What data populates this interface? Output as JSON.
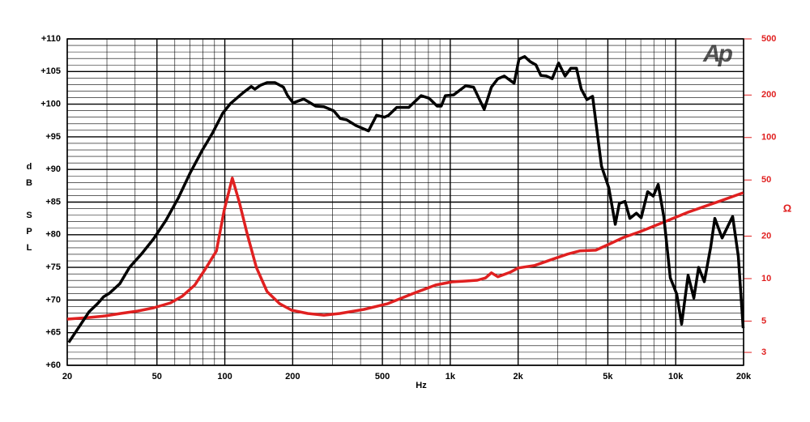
{
  "chart_data": {
    "type": "line",
    "x_label": "Hz",
    "y_label": "dB SPL",
    "y2_label": "Ω",
    "logo": "Ap",
    "xscale": "log",
    "y2scale": "log",
    "xlim": [
      20,
      20000
    ],
    "ylim": [
      60,
      110
    ],
    "y2lim": [
      2.43,
      500
    ],
    "xticks": [
      20,
      50,
      100,
      200,
      500,
      {
        "value": 1000,
        "label": "1k"
      },
      {
        "value": 2000,
        "label": "2k"
      },
      {
        "value": 5000,
        "label": "5k"
      },
      {
        "value": 10000,
        "label": "10k"
      },
      {
        "value": 20000,
        "label": "20k"
      }
    ],
    "yticks": [
      {
        "value": 60,
        "label": "+60"
      },
      {
        "value": 65,
        "label": "+65"
      },
      {
        "value": 70,
        "label": "+70"
      },
      {
        "value": 75,
        "label": "+75"
      },
      {
        "value": 80,
        "label": "+80"
      },
      {
        "value": 85,
        "label": "+85"
      },
      {
        "value": 90,
        "label": "+90"
      },
      {
        "value": 95,
        "label": "+95"
      },
      {
        "value": 100,
        "label": "+100"
      },
      {
        "value": 105,
        "label": "+105"
      },
      {
        "value": 110,
        "label": "+110"
      }
    ],
    "y2ticks": [
      3,
      5,
      10,
      20,
      50,
      100,
      200,
      500
    ],
    "x_minor_grid": [
      30,
      40,
      60,
      70,
      80,
      90,
      300,
      400,
      600,
      700,
      800,
      900,
      3000,
      4000,
      6000,
      7000,
      8000,
      9000
    ],
    "y_minor_grid": [
      61,
      62,
      63,
      64,
      66,
      67,
      68,
      69,
      71,
      72,
      73,
      74,
      76,
      77,
      78,
      79,
      81,
      82,
      83,
      84,
      86,
      87,
      88,
      89,
      91,
      92,
      93,
      94,
      96,
      97,
      98,
      99,
      101,
      102,
      103,
      104,
      106,
      107,
      108,
      109
    ],
    "grid": true,
    "series": [
      {
        "color": "#000000",
        "x": [
          20.3,
          22,
          25,
          27.2,
          29,
          30.7,
          34.2,
          37.8,
          42.8,
          48.4,
          54.8,
          62.1,
          70.3,
          79.6,
          87.9,
          97.8,
          106,
          120,
          131,
          136,
          144,
          154,
          167,
          182,
          190,
          201,
          224,
          253,
          275,
          304,
          325,
          347,
          383,
          434,
          471,
          511,
          533,
          579,
          655,
          742,
          805,
          875,
          912,
          951,
          1033,
          1169,
          1269,
          1414,
          1522,
          1626,
          1737,
          1919,
          2017,
          2137,
          2264,
          2399,
          2521,
          2672,
          2831,
          3024,
          3231,
          3424,
          3628,
          3812,
          4039,
          4280,
          4686,
          5048,
          5395,
          5623,
          5957,
          6259,
          6687,
          7028,
          7507,
          7954,
          8360,
          8859,
          9462,
          10110,
          10620,
          11350,
          12030,
          12640,
          13390,
          14300,
          14910,
          16060,
          17890,
          18950,
          19920
        ],
        "values": [
          63.5,
          65.3,
          68.2,
          69.4,
          70.5,
          71.0,
          72.5,
          75.0,
          77.1,
          79.4,
          82.2,
          85.6,
          89.5,
          93.0,
          95.5,
          98.6,
          100.1,
          101.7,
          102.7,
          102.3,
          102.9,
          103.3,
          103.3,
          102.6,
          101.3,
          100.2,
          100.8,
          99.7,
          99.6,
          99.0,
          97.8,
          97.6,
          96.7,
          95.9,
          98.3,
          98.0,
          98.3,
          99.5,
          99.5,
          101.3,
          100.9,
          99.7,
          99.7,
          101.3,
          101.4,
          102.8,
          102.6,
          99.2,
          102.6,
          103.9,
          104.3,
          103.2,
          106.9,
          107.3,
          106.5,
          106.0,
          104.4,
          104.3,
          103.9,
          106.3,
          104.3,
          105.5,
          105.5,
          102.3,
          100.7,
          101.2,
          90.5,
          87.2,
          81.6,
          84.8,
          85.1,
          82.5,
          83.3,
          82.6,
          86.6,
          85.9,
          87.7,
          82.7,
          73.4,
          70.9,
          66.3,
          73.8,
          70.3,
          75.0,
          72.8,
          78.1,
          82.5,
          79.5,
          82.8,
          76.7,
          65.7
        ]
      },
      {
        "color": "#e02020",
        "axis": "y2",
        "x": [
          20,
          25,
          29.5,
          34.5,
          41.1,
          48.4,
          57.4,
          64.6,
          73.6,
          82.8,
          91.8,
          99.3,
          108,
          116,
          126,
          138,
          154,
          175,
          198,
          233,
          275,
          324,
          414,
          528,
          675,
          862,
          1018,
          1169,
          1317,
          1432,
          1522,
          1626,
          1845,
          2004,
          2372,
          2798,
          3305,
          3745,
          4418,
          5004,
          5872,
          6930,
          8180,
          9650,
          11380,
          13430,
          15850,
          19920
        ],
        "values": [
          5.16,
          5.3,
          5.44,
          5.66,
          5.89,
          6.21,
          6.72,
          7.48,
          9.0,
          12.0,
          15.7,
          30.4,
          51.6,
          34.7,
          20.4,
          12.0,
          8.09,
          6.64,
          5.97,
          5.66,
          5.51,
          5.66,
          6.05,
          6.64,
          7.78,
          9.0,
          9.48,
          9.61,
          9.74,
          10.1,
          11.0,
          10.3,
          11.1,
          11.9,
          12.4,
          13.6,
          14.9,
          15.7,
          15.9,
          17.4,
          19.6,
          21.5,
          23.9,
          26.6,
          29.6,
          32.5,
          35.6,
          40.6
        ]
      }
    ]
  }
}
